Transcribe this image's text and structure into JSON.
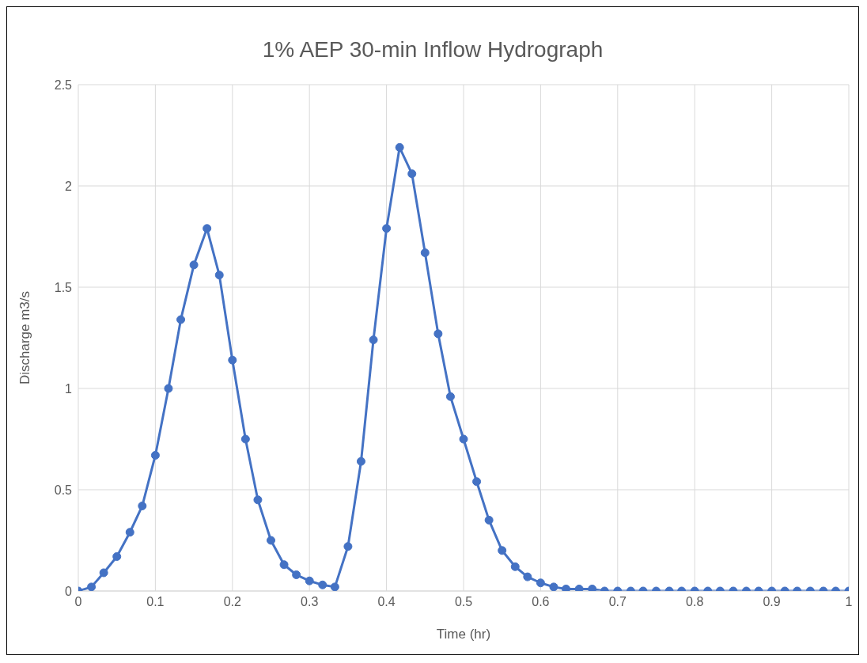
{
  "chart_data": {
    "type": "line",
    "title": "1% AEP 30-min Inflow Hydrograph",
    "xlabel": "Time (hr)",
    "ylabel": "Discharge m3/s",
    "x": [
      0,
      0.017,
      0.033,
      0.05,
      0.067,
      0.083,
      0.1,
      0.117,
      0.133,
      0.15,
      0.167,
      0.183,
      0.2,
      0.217,
      0.233,
      0.25,
      0.267,
      0.283,
      0.3,
      0.317,
      0.333,
      0.35,
      0.367,
      0.383,
      0.4,
      0.417,
      0.433,
      0.45,
      0.467,
      0.483,
      0.5,
      0.517,
      0.533,
      0.55,
      0.567,
      0.583,
      0.6,
      0.617,
      0.633,
      0.65,
      0.667,
      0.683,
      0.7,
      0.717,
      0.733,
      0.75,
      0.767,
      0.783,
      0.8,
      0.817,
      0.833,
      0.85,
      0.867,
      0.883,
      0.9,
      0.917,
      0.933,
      0.95,
      0.967,
      0.983,
      1
    ],
    "series": [
      {
        "color": "#4472c4",
        "values": [
          0,
          0.02,
          0.09,
          0.17,
          0.29,
          0.42,
          0.67,
          1.0,
          1.34,
          1.61,
          1.79,
          1.56,
          1.14,
          0.75,
          0.45,
          0.25,
          0.13,
          0.08,
          0.05,
          0.03,
          0.02,
          0.22,
          0.64,
          1.24,
          1.79,
          2.19,
          2.06,
          1.67,
          1.27,
          0.96,
          0.75,
          0.54,
          0.35,
          0.2,
          0.12,
          0.07,
          0.04,
          0.02,
          0.01,
          0.01,
          0.01,
          0,
          0,
          0,
          0,
          0,
          0,
          0,
          0,
          0,
          0,
          0,
          0,
          0,
          0,
          0,
          0,
          0,
          0,
          0,
          0
        ]
      }
    ],
    "xlim": [
      0,
      1
    ],
    "xticks": [
      0,
      0.1,
      0.2,
      0.3,
      0.4,
      0.5,
      0.6,
      0.7,
      0.8,
      0.9,
      1
    ],
    "ylim": [
      0,
      2.5
    ],
    "yticks": [
      0,
      0.5,
      1,
      1.5,
      2,
      2.5
    ],
    "grid": true,
    "legend": false,
    "marker": "circle",
    "line_style": "solid"
  }
}
